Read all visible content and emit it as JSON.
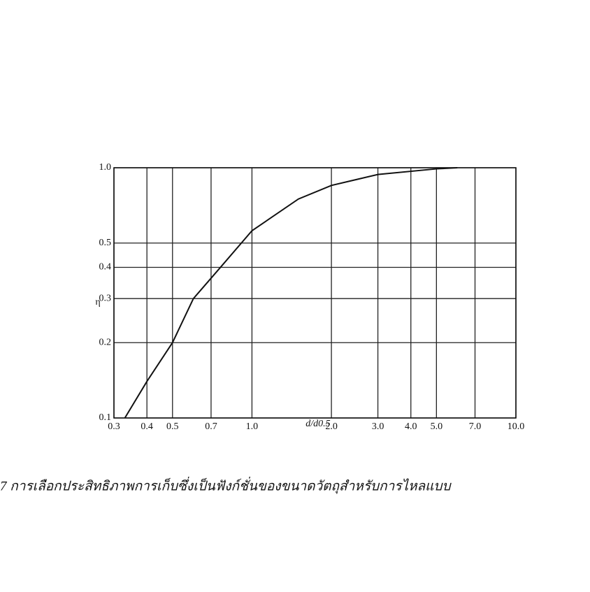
{
  "chart_data": {
    "type": "line",
    "ylabel": "η",
    "xlabel": "d/d0.5",
    "x": [
      0.33,
      0.4,
      0.5,
      0.6,
      0.76,
      1.0,
      1.5,
      2.0,
      3.0,
      5.0,
      6.0
    ],
    "series": [
      {
        "color": "#111111",
        "values": [
          0.1,
          0.14,
          0.2,
          0.3,
          0.4,
          0.56,
          0.75,
          0.85,
          0.94,
          0.99,
          1.0
        ]
      }
    ],
    "xlim": [
      0.3,
      10.0
    ],
    "ylim": [
      0.1,
      1.0
    ],
    "xscale": "log",
    "yscale": "log",
    "grid": true,
    "xticks": [
      0.3,
      0.4,
      0.5,
      0.7,
      {
        "value": 1.0,
        "label": "1.0"
      },
      {
        "value": 2.0,
        "label": "2.0"
      },
      {
        "value": 3.0,
        "label": "3.0"
      },
      {
        "value": 4.0,
        "label": "4.0"
      },
      {
        "value": 5.0,
        "label": "5.0"
      },
      {
        "value": 7.0,
        "label": "7.0"
      },
      {
        "value": 10.0,
        "label": "10.0"
      }
    ],
    "yticks": [
      0.1,
      0.2,
      0.3,
      0.4,
      0.5,
      {
        "value": 1.0,
        "label": "1.0"
      }
    ],
    "caption": "7 การเลือกประสิทธิภาพการเก็บซึ่งเป็นฟังก์ชั่นของขนาดวัตถุสำหรับการไหลแบบ"
  }
}
